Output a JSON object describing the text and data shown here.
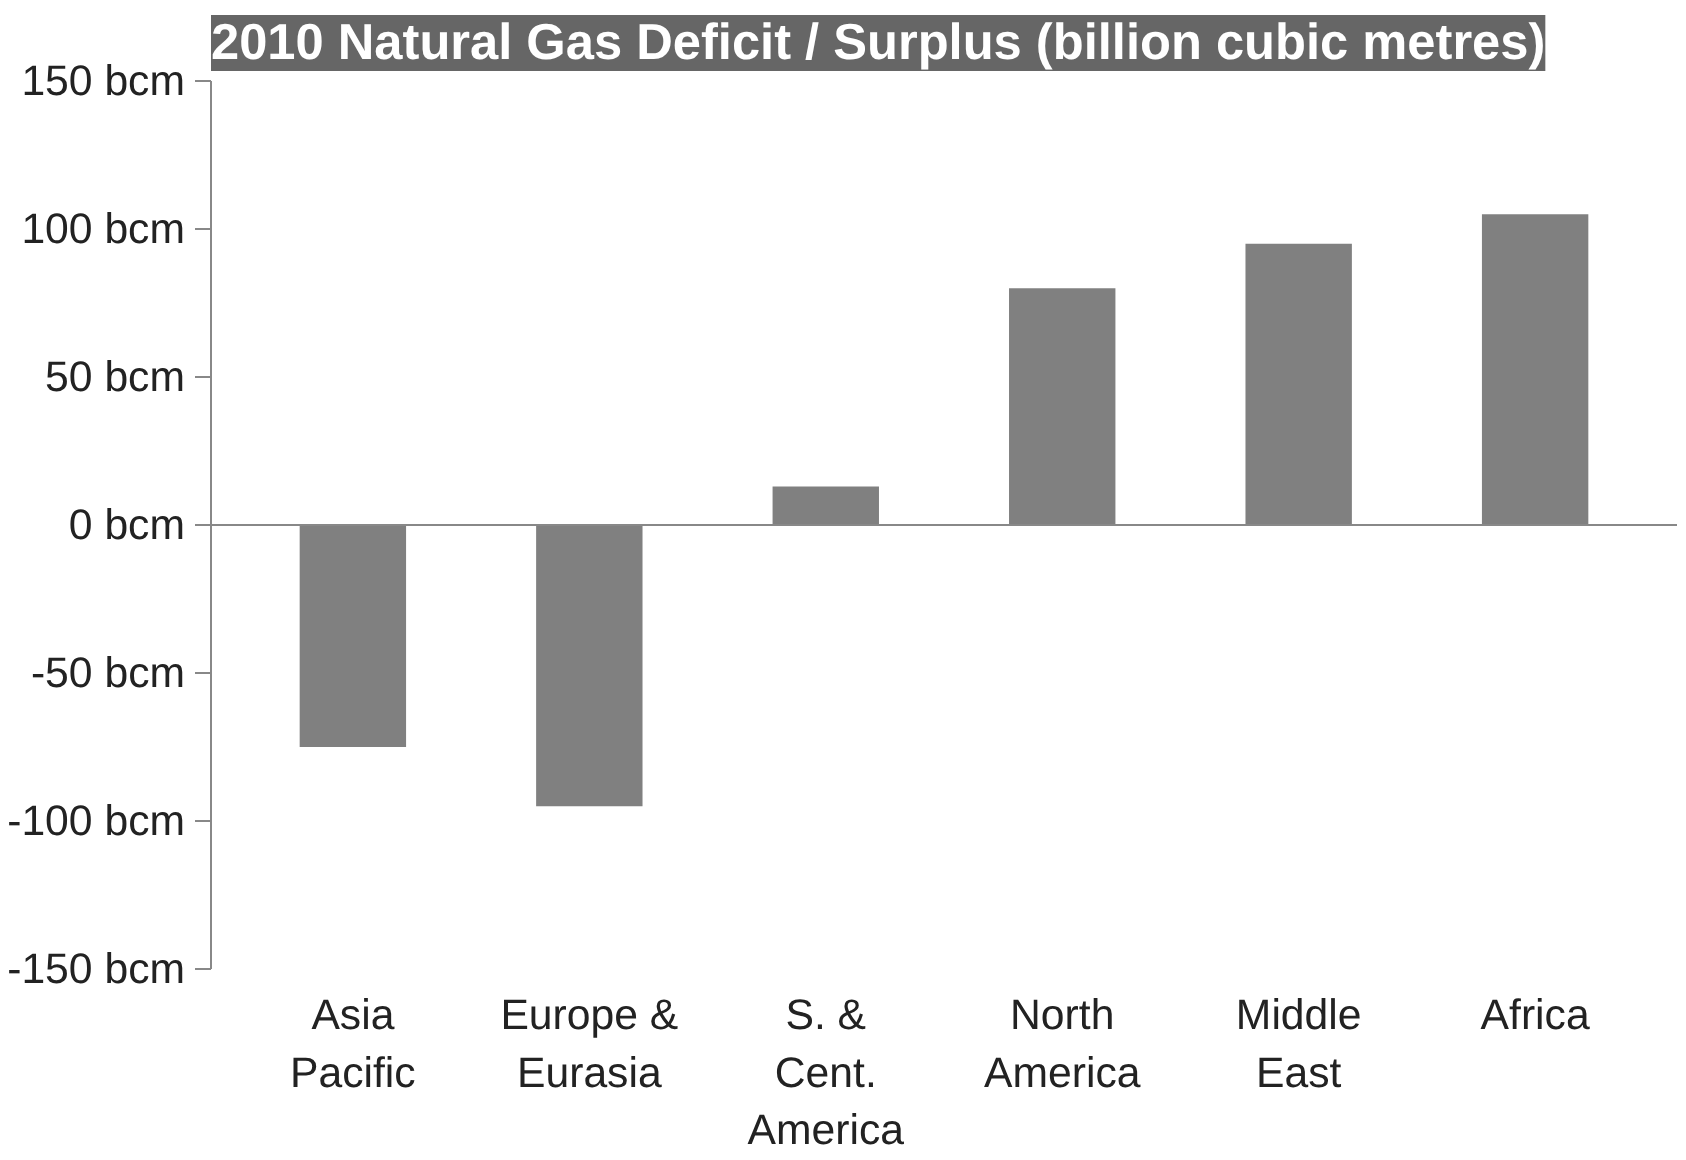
{
  "chart_data": {
    "type": "bar",
    "title": "2010 Natural Gas Deficit / Surplus (billion cubic metres)",
    "categories": [
      "Asia\nPacific",
      "Europe &\nEurasia",
      "S. &\nCent.\nAmerica",
      "North\nAmerica",
      "Middle\nEast",
      "Africa"
    ],
    "values": [
      -75,
      -95,
      13,
      80,
      95,
      105
    ],
    "color": "#808080",
    "yticks": [
      {
        "value": -150,
        "label": "-150 bcm"
      },
      {
        "value": -100,
        "label": "-100 bcm"
      },
      {
        "value": -50,
        "label": "-50 bcm"
      },
      {
        "value": 0,
        "label": "0 bcm"
      },
      {
        "value": 50,
        "label": "50 bcm"
      },
      {
        "value": 100,
        "label": "100 bcm"
      },
      {
        "value": 150,
        "label": "150 bcm"
      }
    ],
    "ylim": [
      -150,
      150
    ]
  }
}
